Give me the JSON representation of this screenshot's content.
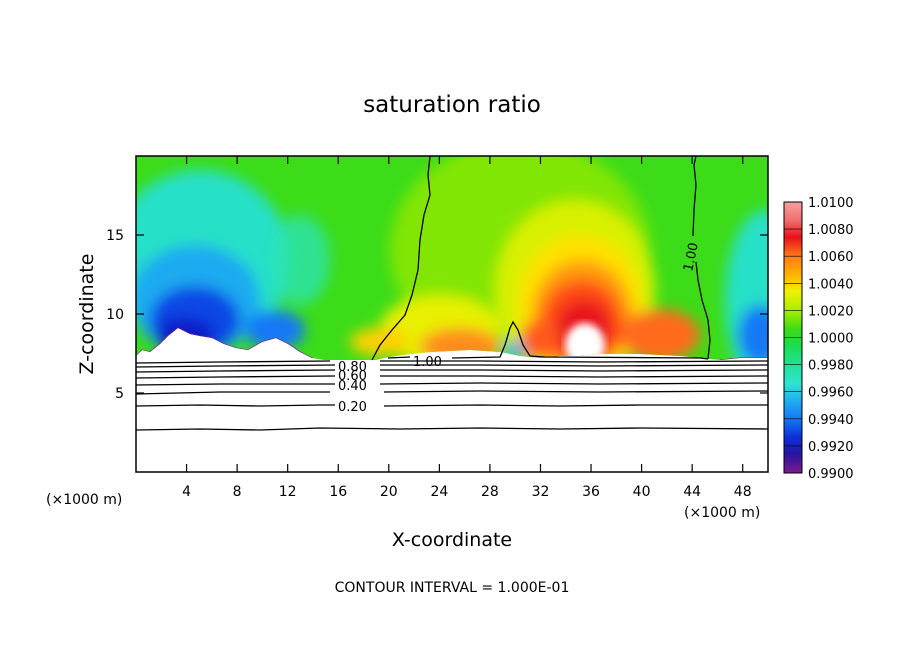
{
  "chart_data": {
    "type": "heatmap",
    "title": "saturation ratio",
    "xlabel": "X-coordinate",
    "ylabel": "Z-coordinate",
    "x_unit_left": "(×1000 m)",
    "x_unit_right": "(×1000 m)",
    "xlim": [
      0,
      50
    ],
    "ylim": [
      0,
      20
    ],
    "xticks": [
      4,
      8,
      12,
      16,
      20,
      24,
      28,
      32,
      36,
      40,
      44,
      48
    ],
    "yticks": [
      5,
      10,
      15
    ],
    "colorbar": {
      "levels": [
        "1.0100",
        "1.0080",
        "1.0060",
        "1.0040",
        "1.0020",
        "1.0000",
        "0.9980",
        "0.9960",
        "0.9940",
        "0.9920",
        "0.9900"
      ],
      "colors": [
        "#f7a0a0",
        "#f26b6b",
        "#e8121a",
        "#ff5a1e",
        "#ff8c1a",
        "#ffb400",
        "#ffe000",
        "#e8f500",
        "#b4f000",
        "#7de800",
        "#3bdc1a",
        "#12d82e",
        "#1adc5a",
        "#24e094",
        "#2ee4c6",
        "#2cd2e6",
        "#1eaaf0",
        "#1478f5",
        "#0a46e6",
        "#0a1ec8",
        "#2814a0",
        "#5a1496",
        "#7e1a8c"
      ]
    },
    "contour_labels": [
      "0.20",
      "0.40",
      "0.60",
      "0.80",
      "1.00",
      "1.00"
    ],
    "contour_interval_text": "CONTOUR INTERVAL = 1.000E-01",
    "grid": false,
    "legend_position": "right"
  }
}
